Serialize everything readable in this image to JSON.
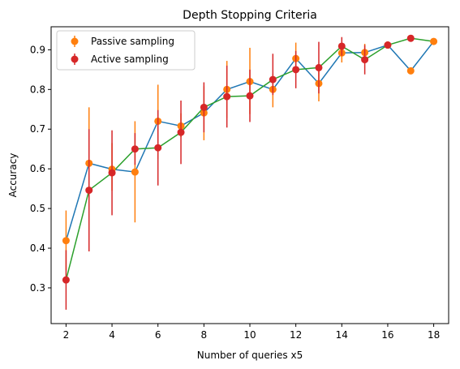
{
  "chart_data": {
    "type": "line",
    "title": "Depth Stopping Criteria",
    "xlabel": "Number of queries x5",
    "ylabel": "Accuracy",
    "xlim": [
      1.35,
      18.65
    ],
    "ylim": [
      0.21,
      0.958
    ],
    "xticks": [
      2,
      4,
      6,
      8,
      10,
      12,
      14,
      16,
      18
    ],
    "yticks": [
      0.3,
      0.4,
      0.5,
      0.6,
      0.7,
      0.8,
      0.9
    ],
    "legend_position": "upper-left",
    "grid": false,
    "series": [
      {
        "name": "Passive sampling",
        "line_color": "#1f77b4",
        "marker_color": "#ff7f0e",
        "x": [
          2,
          3,
          4,
          5,
          6,
          7,
          8,
          9,
          10,
          11,
          12,
          13,
          14,
          15,
          16,
          17,
          18
        ],
        "y": [
          0.419,
          0.614,
          0.599,
          0.592,
          0.72,
          0.708,
          0.741,
          0.8,
          0.82,
          0.8,
          0.878,
          0.815,
          0.892,
          0.893,
          0.912,
          0.847,
          0.921
        ],
        "err_low": [
          0.345,
          0.545,
          0.545,
          0.465,
          0.625,
          0.68,
          0.672,
          0.728,
          0.738,
          0.755,
          0.84,
          0.77,
          0.868,
          0.87,
          0.905,
          0.847,
          0.921
        ],
        "err_high": [
          0.495,
          0.755,
          0.665,
          0.72,
          0.812,
          0.74,
          0.808,
          0.872,
          0.905,
          0.84,
          0.918,
          0.86,
          0.915,
          0.915,
          0.92,
          0.847,
          0.921
        ]
      },
      {
        "name": "Active sampling",
        "line_color": "#2ca02c",
        "marker_color": "#d62728",
        "x": [
          2,
          3,
          4,
          5,
          6,
          7,
          8,
          9,
          10,
          11,
          12,
          13,
          14,
          15,
          16,
          17,
          18
        ],
        "y": [
          0.32,
          0.546,
          0.59,
          0.65,
          0.653,
          0.692,
          0.755,
          0.782,
          0.784,
          0.825,
          0.85,
          0.855,
          0.909,
          0.875,
          0.912,
          0.929,
          0.921
        ],
        "err_low": [
          0.245,
          0.392,
          0.483,
          0.61,
          0.558,
          0.612,
          0.692,
          0.704,
          0.718,
          0.786,
          0.803,
          0.79,
          0.885,
          0.838,
          0.905,
          0.929,
          0.921
        ],
        "err_high": [
          0.395,
          0.7,
          0.697,
          0.69,
          0.748,
          0.772,
          0.818,
          0.86,
          0.85,
          0.89,
          0.897,
          0.92,
          0.932,
          0.912,
          0.918,
          0.929,
          0.921
        ],
        "show_marker": [
          true,
          true,
          true,
          true,
          true,
          true,
          true,
          true,
          true,
          true,
          true,
          true,
          true,
          true,
          true,
          true,
          false
        ]
      }
    ]
  }
}
